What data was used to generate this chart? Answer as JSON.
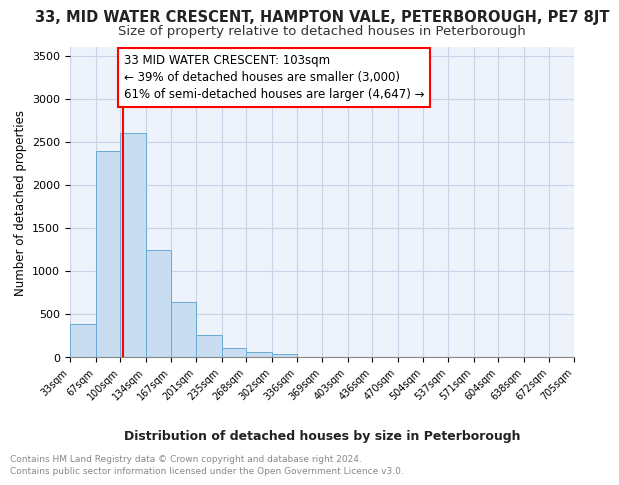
{
  "title": "33, MID WATER CRESCENT, HAMPTON VALE, PETERBOROUGH, PE7 8JT",
  "subtitle": "Size of property relative to detached houses in Peterborough",
  "xlabel": "Distribution of detached houses by size in Peterborough",
  "ylabel": "Number of detached properties",
  "bin_edges": [
    33,
    67,
    100,
    134,
    167,
    201,
    235,
    268,
    302,
    336,
    369,
    403,
    436,
    470,
    504,
    537,
    571,
    604,
    638,
    672,
    705
  ],
  "bar_heights": [
    380,
    2390,
    2600,
    1240,
    640,
    255,
    110,
    55,
    40,
    0,
    0,
    0,
    0,
    0,
    0,
    0,
    0,
    0,
    0,
    0
  ],
  "bar_color": "#c9ddf0",
  "bar_edgecolor": "#6aaad4",
  "tick_labels": [
    "33sqm",
    "67sqm",
    "100sqm",
    "134sqm",
    "167sqm",
    "201sqm",
    "235sqm",
    "268sqm",
    "302sqm",
    "336sqm",
    "369sqm",
    "403sqm",
    "436sqm",
    "470sqm",
    "504sqm",
    "537sqm",
    "571sqm",
    "604sqm",
    "638sqm",
    "672sqm",
    "705sqm"
  ],
  "red_line_x": 103,
  "annotation_line1": "33 MID WATER CRESCENT: 103sqm",
  "annotation_line2": "← 39% of detached houses are smaller (3,000)",
  "annotation_line3": "61% of semi-detached houses are larger (4,647) →",
  "ylim": [
    0,
    3600
  ],
  "yticks": [
    0,
    500,
    1000,
    1500,
    2000,
    2500,
    3000,
    3500
  ],
  "footer_line1": "Contains HM Land Registry data © Crown copyright and database right 2024.",
  "footer_line2": "Contains public sector information licensed under the Open Government Licence v3.0.",
  "background_color": "#ffffff",
  "plot_bg_color": "#edf2fb",
  "grid_color": "#c8d4e8",
  "title_fontsize": 10.5,
  "subtitle_fontsize": 9.5,
  "annot_fontsize": 8.5,
  "ylabel_fontsize": 8.5,
  "xlabel_fontsize": 9,
  "tick_fontsize": 7,
  "footer_fontsize": 6.5
}
